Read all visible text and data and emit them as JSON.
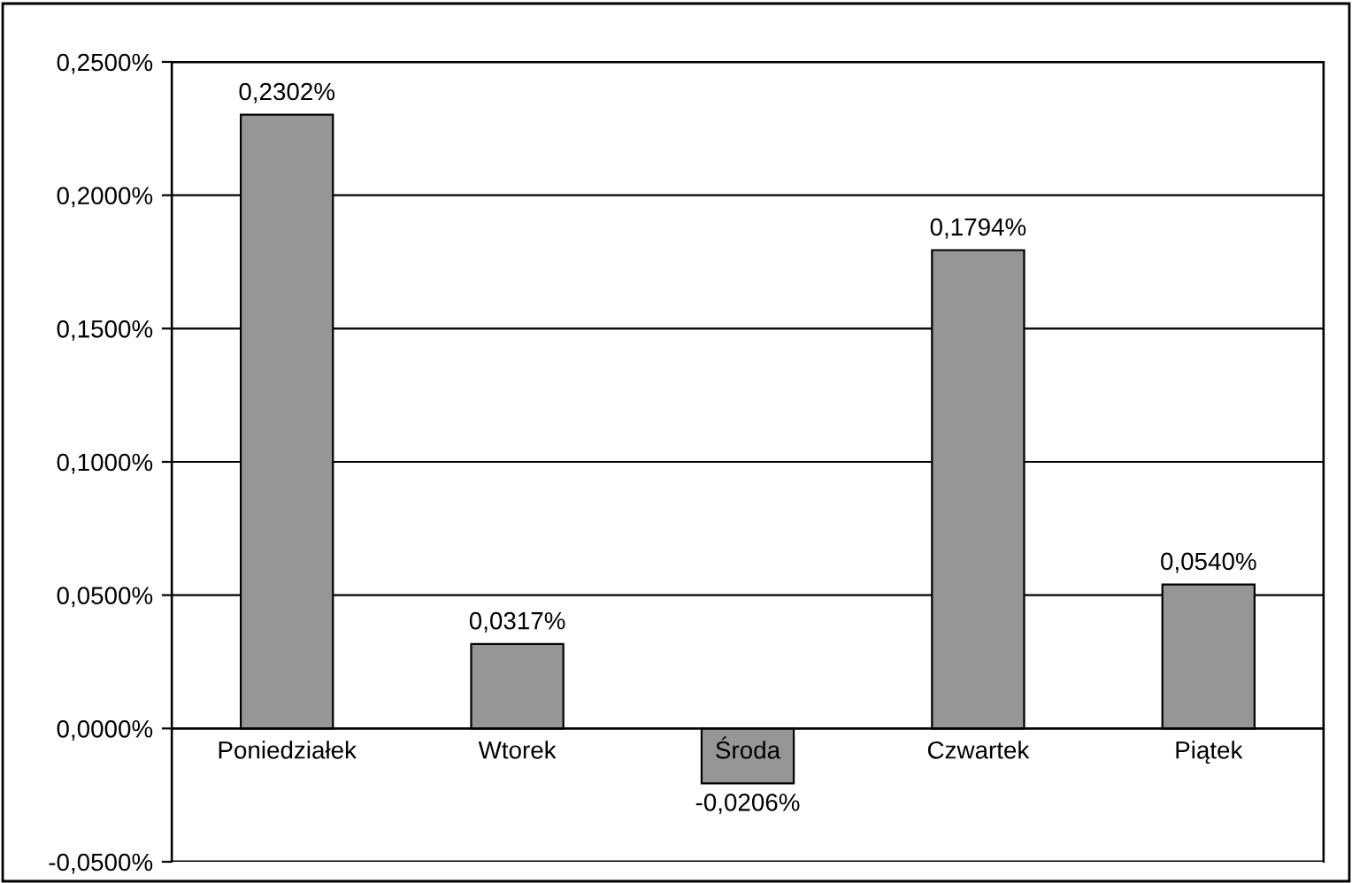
{
  "chart_data": {
    "type": "bar",
    "categories": [
      "Poniedziałek",
      "Wtorek",
      "Środa",
      "Czwartek",
      "Piątek"
    ],
    "values": [
      0.2302,
      0.0317,
      -0.0206,
      0.1794,
      0.054
    ],
    "value_labels": [
      "0,2302%",
      "0,0317%",
      "-0,0206%",
      "0,1794%",
      "0,0540%"
    ],
    "color": "#969696",
    "ylim": [
      -0.05,
      0.25
    ],
    "yticks": [
      {
        "value": -0.05,
        "label": "-0,0500%"
      },
      {
        "value": 0,
        "label": "0,0000%"
      },
      {
        "value": 0.05,
        "label": "0,0500%"
      },
      {
        "value": 0.1,
        "label": "0,1000%"
      },
      {
        "value": 0.15,
        "label": "0,1500%"
      },
      {
        "value": 0.2,
        "label": "0,2000%"
      },
      {
        "value": 0.25,
        "label": "0,2500%"
      }
    ],
    "grid": "y"
  }
}
